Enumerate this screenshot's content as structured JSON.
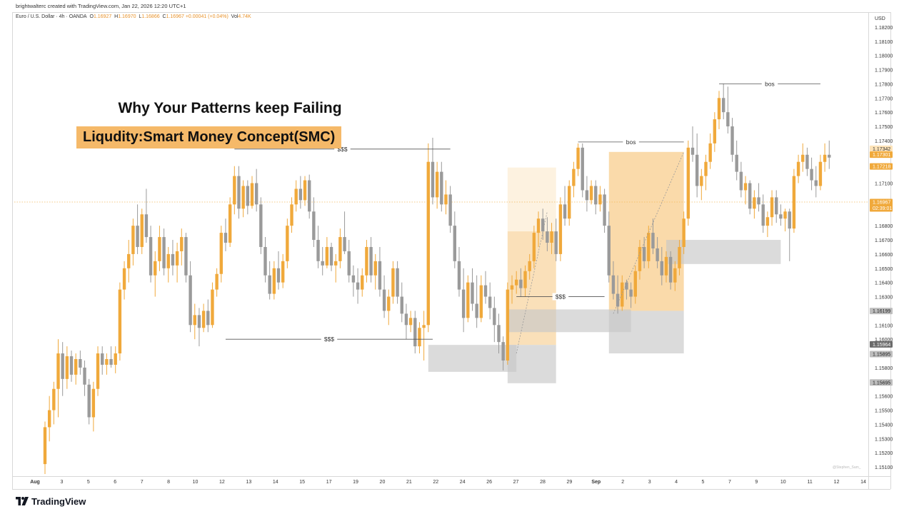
{
  "header": {
    "creator": "brightwalterc created with TradingView.com, Jan 22, 2026 12:20 UTC+1",
    "symbol": "Euro / U.S. Dollar · 4h · OANDA",
    "o_label": "O",
    "o": "1.16927",
    "h_label": "H",
    "h": "1.16970",
    "l_label": "L",
    "l": "1.16866",
    "c_label": "C",
    "c": "1.16967",
    "change": "+0.00041 (+0.04%)",
    "vol_label": "Vol",
    "vol": "4.74K"
  },
  "currency": "USD",
  "title_line1": "Why Your Patterns keep Failing",
  "title_line2": "Liqudity:Smart Money Concept(SMC)",
  "brand": "TradingView",
  "watermark": "@Stephen_Sam_",
  "colors": {
    "bull": "#f0a93b",
    "bear": "#9a9a9a",
    "zone_orange": "#f5b555",
    "zone_gray": "#c8c8c8",
    "current_price": "#f0a93b"
  },
  "chart_data": {
    "type": "candlestick",
    "y_ticks": [
      "1.18200",
      "1.18100",
      "1.18000",
      "1.17900",
      "1.17800",
      "1.17700",
      "1.17600",
      "1.17500",
      "1.17400",
      "1.17100",
      "1.16800",
      "1.16700",
      "1.16600",
      "1.16500",
      "1.16400",
      "1.16300",
      "1.16100",
      "1.16000",
      "1.15800",
      "1.15700",
      "1.15600",
      "1.15500",
      "1.15400",
      "1.15300",
      "1.15200",
      "1.15100"
    ],
    "ylim": [
      1.1505,
      1.1829
    ],
    "x_labels": [
      {
        "label": "Aug",
        "bold": true
      },
      {
        "label": "3"
      },
      {
        "label": "5"
      },
      {
        "label": "6"
      },
      {
        "label": "7"
      },
      {
        "label": "8"
      },
      {
        "label": "10"
      },
      {
        "label": "12"
      },
      {
        "label": "13"
      },
      {
        "label": "14"
      },
      {
        "label": "15"
      },
      {
        "label": "17"
      },
      {
        "label": "19"
      },
      {
        "label": "20"
      },
      {
        "label": "21"
      },
      {
        "label": "22"
      },
      {
        "label": "24"
      },
      {
        "label": "26"
      },
      {
        "label": "27"
      },
      {
        "label": "28"
      },
      {
        "label": "29"
      },
      {
        "label": "Sep",
        "bold": true
      },
      {
        "label": "2"
      },
      {
        "label": "3"
      },
      {
        "label": "4"
      },
      {
        "label": "5"
      },
      {
        "label": "7"
      },
      {
        "label": "9"
      },
      {
        "label": "10"
      },
      {
        "label": "11"
      },
      {
        "label": "12"
      },
      {
        "label": "14"
      }
    ],
    "price_badges": [
      {
        "price": 1.17342,
        "label": "1.17342",
        "style": "light"
      },
      {
        "price": 1.17301,
        "label": "1.17301",
        "style": "orange"
      },
      {
        "price": 1.17218,
        "label": "1.17218",
        "style": "orange"
      },
      {
        "price": 1.16967,
        "label": "1.16967",
        "label2": "02:39:01",
        "style": "current"
      },
      {
        "price": 1.16199,
        "label": "1.16199",
        "style": "gray"
      },
      {
        "price": 1.15964,
        "label": "1.15964",
        "style": "dark"
      },
      {
        "price": 1.15895,
        "label": "1.15895",
        "style": "gray"
      },
      {
        "price": 1.15695,
        "label": "1.15695",
        "style": "gray"
      }
    ],
    "current_price": 1.16967,
    "annotations": [
      {
        "label": "$$$",
        "price": 1.1734,
        "from": 43,
        "to": 92
      },
      {
        "label": "$$$",
        "price": 1.16,
        "from": 41,
        "to": 88
      },
      {
        "label": "$$$",
        "price": 1.163,
        "from": 107,
        "to": 127
      },
      {
        "label": "bos",
        "price": 1.1739,
        "from": 121,
        "to": 145
      },
      {
        "label": "bos",
        "price": 1.178,
        "from": 153,
        "to": 176
      }
    ],
    "zones": [
      {
        "kind": "orange",
        "from": 105,
        "to": 116,
        "top": 1.1721,
        "bottom": 1.1596,
        "opacity": 0.18
      },
      {
        "kind": "orange",
        "from": 105,
        "to": 116,
        "top": 1.1676,
        "bottom": 1.1596,
        "opacity": 0.28
      },
      {
        "kind": "orange",
        "from": 128,
        "to": 145,
        "top": 1.1732,
        "bottom": 1.162,
        "opacity": 0.5
      },
      {
        "kind": "gray",
        "from": 87,
        "to": 107,
        "top": 1.1596,
        "bottom": 1.1577,
        "opacity": 0.65
      },
      {
        "kind": "gray",
        "from": 105,
        "to": 116,
        "top": 1.1596,
        "bottom": 1.1569,
        "opacity": 0.65
      },
      {
        "kind": "gray",
        "from": 105,
        "to": 133,
        "top": 1.1621,
        "bottom": 1.1605,
        "opacity": 0.65
      },
      {
        "kind": "gray",
        "from": 128,
        "to": 145,
        "top": 1.162,
        "bottom": 1.159,
        "opacity": 0.65
      },
      {
        "kind": "gray",
        "from": 141,
        "to": 167,
        "top": 1.167,
        "bottom": 1.1653,
        "opacity": 0.65
      }
    ],
    "candles": [
      [
        1.1512,
        1.1542,
        1.1505,
        1.1538
      ],
      [
        1.1538,
        1.156,
        1.1528,
        1.155
      ],
      [
        1.155,
        1.157,
        1.154,
        1.1565
      ],
      [
        1.1565,
        1.16,
        1.1545,
        1.159
      ],
      [
        1.159,
        1.1598,
        1.156,
        1.1572
      ],
      [
        1.1572,
        1.1595,
        1.1565,
        1.1588
      ],
      [
        1.1588,
        1.1592,
        1.157,
        1.1575
      ],
      [
        1.1575,
        1.159,
        1.1568,
        1.1586
      ],
      [
        1.1586,
        1.1592,
        1.1575,
        1.158
      ],
      [
        1.158,
        1.1585,
        1.156,
        1.1568
      ],
      [
        1.1568,
        1.1572,
        1.154,
        1.1545
      ],
      [
        1.1545,
        1.157,
        1.1535,
        1.1565
      ],
      [
        1.1565,
        1.1595,
        1.156,
        1.159
      ],
      [
        1.159,
        1.1595,
        1.1575,
        1.1582
      ],
      [
        1.1582,
        1.159,
        1.1575,
        1.1586
      ],
      [
        1.1586,
        1.1595,
        1.158,
        1.1582
      ],
      [
        1.1582,
        1.1595,
        1.1576,
        1.159
      ],
      [
        1.159,
        1.164,
        1.1585,
        1.1635
      ],
      [
        1.1635,
        1.1655,
        1.1628,
        1.165
      ],
      [
        1.165,
        1.167,
        1.164,
        1.166
      ],
      [
        1.166,
        1.1685,
        1.1652,
        1.168
      ],
      [
        1.168,
        1.1695,
        1.166,
        1.1665
      ],
      [
        1.1665,
        1.1692,
        1.166,
        1.1688
      ],
      [
        1.1688,
        1.1706,
        1.1668,
        1.1672
      ],
      [
        1.1672,
        1.168,
        1.164,
        1.1645
      ],
      [
        1.1645,
        1.1662,
        1.163,
        1.1655
      ],
      [
        1.1655,
        1.168,
        1.1648,
        1.1672
      ],
      [
        1.1672,
        1.1678,
        1.1645,
        1.165
      ],
      [
        1.165,
        1.1665,
        1.164,
        1.166
      ],
      [
        1.166,
        1.167,
        1.1645,
        1.1652
      ],
      [
        1.1652,
        1.1668,
        1.164,
        1.1662
      ],
      [
        1.1662,
        1.1678,
        1.1652,
        1.1672
      ],
      [
        1.1672,
        1.1675,
        1.164,
        1.1645
      ],
      [
        1.1645,
        1.1655,
        1.1605,
        1.161
      ],
      [
        1.161,
        1.1625,
        1.16,
        1.1617
      ],
      [
        1.1617,
        1.1622,
        1.1595,
        1.1608
      ],
      [
        1.1608,
        1.1625,
        1.1605,
        1.162
      ],
      [
        1.162,
        1.1628,
        1.1605,
        1.161
      ],
      [
        1.161,
        1.164,
        1.1608,
        1.1635
      ],
      [
        1.1635,
        1.165,
        1.163,
        1.1646
      ],
      [
        1.1646,
        1.168,
        1.164,
        1.1675
      ],
      [
        1.1675,
        1.1685,
        1.1662,
        1.1668
      ],
      [
        1.1668,
        1.17,
        1.1665,
        1.1695
      ],
      [
        1.1695,
        1.1722,
        1.1688,
        1.1715
      ],
      [
        1.1715,
        1.1722,
        1.1685,
        1.1692
      ],
      [
        1.1692,
        1.1712,
        1.1686,
        1.1708
      ],
      [
        1.1708,
        1.1712,
        1.1688,
        1.1694
      ],
      [
        1.1694,
        1.1715,
        1.1692,
        1.171
      ],
      [
        1.171,
        1.172,
        1.169,
        1.1695
      ],
      [
        1.1695,
        1.17,
        1.166,
        1.1665
      ],
      [
        1.1665,
        1.1672,
        1.164,
        1.1645
      ],
      [
        1.1645,
        1.1655,
        1.1628,
        1.1632
      ],
      [
        1.1632,
        1.1655,
        1.1628,
        1.165
      ],
      [
        1.165,
        1.1662,
        1.1635,
        1.164
      ],
      [
        1.164,
        1.166,
        1.1636,
        1.1655
      ],
      [
        1.1655,
        1.1685,
        1.165,
        1.168
      ],
      [
        1.168,
        1.17,
        1.1675,
        1.1695
      ],
      [
        1.1695,
        1.1712,
        1.169,
        1.1706
      ],
      [
        1.1706,
        1.1715,
        1.1692,
        1.1698
      ],
      [
        1.1698,
        1.1715,
        1.1694,
        1.1712
      ],
      [
        1.1712,
        1.1716,
        1.1685,
        1.169
      ],
      [
        1.169,
        1.17,
        1.1665,
        1.167
      ],
      [
        1.167,
        1.168,
        1.165,
        1.1655
      ],
      [
        1.1655,
        1.1665,
        1.1645,
        1.1652
      ],
      [
        1.1652,
        1.1672,
        1.165,
        1.1665
      ],
      [
        1.1665,
        1.1668,
        1.1648,
        1.1652
      ],
      [
        1.1652,
        1.166,
        1.164,
        1.1655
      ],
      [
        1.1655,
        1.1678,
        1.165,
        1.1672
      ],
      [
        1.1672,
        1.169,
        1.166,
        1.1662
      ],
      [
        1.1662,
        1.167,
        1.164,
        1.1645
      ],
      [
        1.1645,
        1.1652,
        1.163,
        1.164
      ],
      [
        1.164,
        1.165,
        1.1625,
        1.1635
      ],
      [
        1.1635,
        1.165,
        1.163,
        1.1645
      ],
      [
        1.1645,
        1.167,
        1.164,
        1.1665
      ],
      [
        1.1665,
        1.1672,
        1.164,
        1.1645
      ],
      [
        1.1645,
        1.166,
        1.1635,
        1.1655
      ],
      [
        1.1655,
        1.1665,
        1.163,
        1.1635
      ],
      [
        1.1635,
        1.1645,
        1.1615,
        1.162
      ],
      [
        1.162,
        1.1635,
        1.161,
        1.163
      ],
      [
        1.163,
        1.1655,
        1.1625,
        1.165
      ],
      [
        1.165,
        1.1655,
        1.1625,
        1.163
      ],
      [
        1.163,
        1.164,
        1.1612,
        1.1618
      ],
      [
        1.1618,
        1.1625,
        1.16,
        1.161
      ],
      [
        1.161,
        1.162,
        1.1605,
        1.1615
      ],
      [
        1.1615,
        1.162,
        1.159,
        1.1595
      ],
      [
        1.1595,
        1.1612,
        1.159,
        1.1608
      ],
      [
        1.1608,
        1.162,
        1.1585,
        1.161
      ],
      [
        1.161,
        1.1738,
        1.1605,
        1.1725
      ],
      [
        1.1725,
        1.1742,
        1.1695,
        1.17
      ],
      [
        1.17,
        1.1725,
        1.1692,
        1.1718
      ],
      [
        1.1718,
        1.1725,
        1.169,
        1.1695
      ],
      [
        1.1695,
        1.1712,
        1.1688,
        1.1702
      ],
      [
        1.1702,
        1.1708,
        1.1675,
        1.168
      ],
      [
        1.168,
        1.169,
        1.165,
        1.1655
      ],
      [
        1.1655,
        1.1665,
        1.163,
        1.1635
      ],
      [
        1.1635,
        1.165,
        1.1605,
        1.1615
      ],
      [
        1.1615,
        1.1645,
        1.1612,
        1.164
      ],
      [
        1.164,
        1.165,
        1.162,
        1.1625
      ],
      [
        1.1625,
        1.1645,
        1.1608,
        1.1615
      ],
      [
        1.1615,
        1.1645,
        1.1612,
        1.1638
      ],
      [
        1.1638,
        1.1648,
        1.1625,
        1.163
      ],
      [
        1.163,
        1.164,
        1.1614,
        1.1622
      ],
      [
        1.1622,
        1.163,
        1.1598,
        1.161
      ],
      [
        1.161,
        1.1618,
        1.159,
        1.1598
      ],
      [
        1.1598,
        1.1602,
        1.1578,
        1.1585
      ],
      [
        1.1585,
        1.164,
        1.1582,
        1.1635
      ],
      [
        1.1635,
        1.1645,
        1.1625,
        1.1638
      ],
      [
        1.1638,
        1.1648,
        1.1632,
        1.1642
      ],
      [
        1.1642,
        1.165,
        1.163,
        1.1636
      ],
      [
        1.1636,
        1.1652,
        1.163,
        1.1648
      ],
      [
        1.1648,
        1.166,
        1.1642,
        1.1655
      ],
      [
        1.1655,
        1.168,
        1.165,
        1.1675
      ],
      [
        1.1675,
        1.169,
        1.1665,
        1.1685
      ],
      [
        1.1685,
        1.1692,
        1.167,
        1.1676
      ],
      [
        1.1676,
        1.1686,
        1.1662,
        1.1668
      ],
      [
        1.1668,
        1.1682,
        1.166,
        1.1676
      ],
      [
        1.1676,
        1.1685,
        1.1655,
        1.166
      ],
      [
        1.166,
        1.17,
        1.1655,
        1.1695
      ],
      [
        1.1695,
        1.1708,
        1.168,
        1.1685
      ],
      [
        1.1685,
        1.1712,
        1.168,
        1.1708
      ],
      [
        1.1708,
        1.1725,
        1.17,
        1.172
      ],
      [
        1.172,
        1.1738,
        1.1715,
        1.1735
      ],
      [
        1.1735,
        1.1738,
        1.17,
        1.1705
      ],
      [
        1.1705,
        1.1715,
        1.169,
        1.1698
      ],
      [
        1.1698,
        1.1712,
        1.1695,
        1.1708
      ],
      [
        1.1708,
        1.1712,
        1.1688,
        1.1695
      ],
      [
        1.1695,
        1.1708,
        1.169,
        1.1702
      ],
      [
        1.1702,
        1.1706,
        1.1675,
        1.168
      ],
      [
        1.168,
        1.169,
        1.164,
        1.1645
      ],
      [
        1.1645,
        1.1655,
        1.1628,
        1.1632
      ],
      [
        1.1632,
        1.1645,
        1.1618,
        1.1623
      ],
      [
        1.1623,
        1.1645,
        1.162,
        1.164
      ],
      [
        1.164,
        1.1642,
        1.1628,
        1.1635
      ],
      [
        1.1635,
        1.164,
        1.1622,
        1.163
      ],
      [
        1.163,
        1.1652,
        1.1625,
        1.1648
      ],
      [
        1.1648,
        1.167,
        1.1642,
        1.1665
      ],
      [
        1.1665,
        1.1672,
        1.165,
        1.1655
      ],
      [
        1.1655,
        1.168,
        1.165,
        1.1675
      ],
      [
        1.1675,
        1.1685,
        1.166,
        1.1664
      ],
      [
        1.1664,
        1.1672,
        1.165,
        1.1655
      ],
      [
        1.1655,
        1.1665,
        1.1638,
        1.1645
      ],
      [
        1.1645,
        1.1662,
        1.164,
        1.1658
      ],
      [
        1.1658,
        1.1662,
        1.1635,
        1.164
      ],
      [
        1.164,
        1.1655,
        1.1634,
        1.165
      ],
      [
        1.165,
        1.167,
        1.1645,
        1.1665
      ],
      [
        1.1665,
        1.169,
        1.166,
        1.1685
      ],
      [
        1.1685,
        1.174,
        1.168,
        1.1735
      ],
      [
        1.1735,
        1.175,
        1.1725,
        1.173
      ],
      [
        1.173,
        1.1745,
        1.17,
        1.1708
      ],
      [
        1.1708,
        1.172,
        1.1698,
        1.1715
      ],
      [
        1.1715,
        1.173,
        1.1705,
        1.1725
      ],
      [
        1.1725,
        1.1745,
        1.172,
        1.1738
      ],
      [
        1.1738,
        1.176,
        1.1732,
        1.1755
      ],
      [
        1.1755,
        1.1775,
        1.1748,
        1.177
      ],
      [
        1.177,
        1.178,
        1.1755,
        1.176
      ],
      [
        1.176,
        1.1778,
        1.1745,
        1.175
      ],
      [
        1.175,
        1.1756,
        1.1725,
        1.173
      ],
      [
        1.173,
        1.174,
        1.1712,
        1.1718
      ],
      [
        1.1718,
        1.1725,
        1.17,
        1.1705
      ],
      [
        1.1705,
        1.1715,
        1.1695,
        1.171
      ],
      [
        1.171,
        1.1712,
        1.1688,
        1.1692
      ],
      [
        1.1692,
        1.1705,
        1.1685,
        1.17
      ],
      [
        1.17,
        1.171,
        1.169,
        1.1695
      ],
      [
        1.1695,
        1.1702,
        1.1675,
        1.168
      ],
      [
        1.168,
        1.169,
        1.1672,
        1.1686
      ],
      [
        1.1686,
        1.1705,
        1.168,
        1.17
      ],
      [
        1.17,
        1.1705,
        1.1682,
        1.1688
      ],
      [
        1.1688,
        1.1695,
        1.168,
        1.1685
      ],
      [
        1.1685,
        1.1692,
        1.1676,
        1.169
      ],
      [
        1.169,
        1.1692,
        1.1655,
        1.1678
      ],
      [
        1.1678,
        1.172,
        1.1675,
        1.1715
      ],
      [
        1.1715,
        1.173,
        1.171,
        1.1725
      ],
      [
        1.1725,
        1.1738,
        1.1718,
        1.173
      ],
      [
        1.173,
        1.1735,
        1.1715,
        1.172
      ],
      [
        1.172,
        1.1728,
        1.1705,
        1.1712
      ],
      [
        1.1712,
        1.1722,
        1.17,
        1.1708
      ],
      [
        1.1708,
        1.173,
        1.1705,
        1.1725
      ],
      [
        1.1725,
        1.1738,
        1.1718,
        1.173
      ],
      [
        1.173,
        1.174,
        1.172,
        1.1728
      ]
    ]
  }
}
